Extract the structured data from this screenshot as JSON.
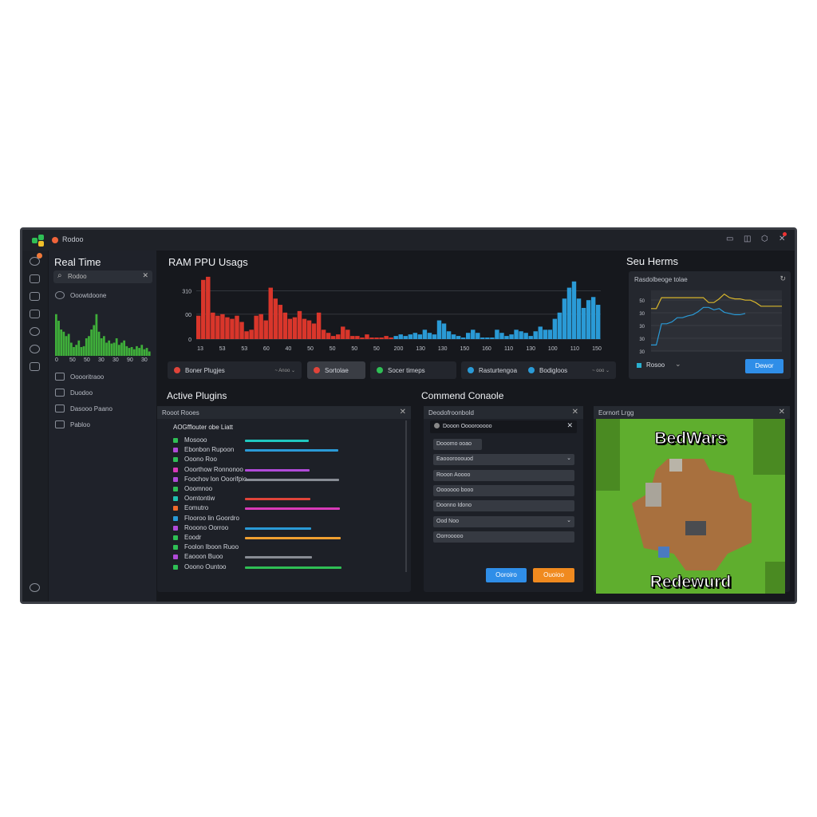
{
  "window": {
    "title": "Rodoo",
    "controls": [
      "minimize-icon",
      "restore-icon",
      "settings-icon",
      "close-icon"
    ]
  },
  "colors": {
    "red": "#d9362b",
    "blue": "#2a9ad6",
    "green": "#3fae3a",
    "yellow": "#d8b62c",
    "accent_blue": "#2f8ee8",
    "accent_orange": "#f08a1f"
  },
  "sidebar": {
    "title": "Real Time",
    "search": "Rodoo",
    "item_top": "Ooowtdoone",
    "items": [
      {
        "label": "Ooooritraoo",
        "icon": "puzzle-icon"
      },
      {
        "label": "Duodoo",
        "icon": "nodes-icon"
      },
      {
        "label": "Dasooo Paano",
        "icon": "list-icon"
      },
      {
        "label": "Pabloo",
        "icon": "blocks-icon"
      }
    ]
  },
  "main": {
    "title": "RAM PPU Usags",
    "legend": [
      {
        "label": "Boner Plugjes",
        "color": "#e0443a",
        "extra": "~ Anoo"
      },
      {
        "label": "Sortolae",
        "color": "#e0443a"
      },
      {
        "label": "Socer timeps",
        "color": "#2fbf55"
      },
      {
        "label": "Rasturtengoa",
        "color": "#2a9ad6"
      },
      {
        "label": "Bodigloos",
        "color": "#2a9ad6",
        "extra": "~ ooo"
      }
    ]
  },
  "right": {
    "title": "Seu Herms",
    "panel_title": "Rasdolbeoge tolae",
    "legend_label": "Rosoo",
    "button": "Dewor"
  },
  "plugins": {
    "title": "Active Plugins",
    "panel_title": "Rooot Rooes",
    "list_title": "AOGfflouter obe Liatt",
    "items": [
      {
        "name": "Mosooo",
        "color": "#2fbf55"
      },
      {
        "name": "Ebonbon Rupoon",
        "color": "#b04ad8"
      },
      {
        "name": "Ooono Roo",
        "color": "#2fbf55"
      },
      {
        "name": "Ooorthow Ronnonoo",
        "color": "#d83ab8"
      },
      {
        "name": "Foochov lon Ooorifpio",
        "color": "#b04ad8"
      },
      {
        "name": "Ooomnoo",
        "color": "#2fbf55"
      },
      {
        "name": "Oomtontiw",
        "color": "#20c0b0"
      },
      {
        "name": "Eomutro",
        "color": "#f06a2a"
      },
      {
        "name": "Flooroo lin Goordro",
        "color": "#2a9ad6"
      },
      {
        "name": "Rooono Oorroo",
        "color": "#b04ad8"
      },
      {
        "name": "Eoodr",
        "color": "#2fbf55"
      },
      {
        "name": "Foolon Iboon Ruoo",
        "color": "#2fbf55"
      },
      {
        "name": "Eaooon Buoo",
        "color": "#b04ad8"
      },
      {
        "name": "Ooono Ountoo",
        "color": "#2fbf55"
      }
    ]
  },
  "console": {
    "title": "Commend Conaole",
    "panel_title": "Deodofroonbold",
    "input": "Dooon Oooorooooo",
    "fields": [
      "Dooomo ooao",
      "Eaooorooouod",
      "Rooon Aoooo",
      "Ooooooo booo",
      "Doonno Idono",
      "Ood Noo",
      "Oorrooooo"
    ],
    "buttons": {
      "primary": "Ooroiro",
      "secondary": "Ouoioo"
    }
  },
  "map": {
    "panel_title": "Eornort Lrgg",
    "top_text": "BedWars",
    "bottom_text": "Redewurd"
  },
  "chart_data": [
    {
      "type": "bar",
      "title": "RAM PPU Usags",
      "yticks": [
        "310",
        "00",
        "0"
      ],
      "xticks": [
        "13",
        "53",
        "53",
        "60",
        "40",
        "50",
        "50",
        "50",
        "50",
        "200",
        "130",
        "130",
        "150",
        "160",
        "110",
        "130",
        "100",
        "110",
        "150"
      ],
      "ylim": [
        0,
        420
      ],
      "series": [
        {
          "color": "#d9362b",
          "values": [
            150,
            380,
            400,
            170,
            150,
            160,
            140,
            130,
            150,
            110,
            50,
            60,
            150,
            160,
            120,
            330,
            260,
            220,
            170,
            130,
            140,
            180,
            130,
            120,
            100,
            170,
            60,
            40,
            20,
            30,
            80,
            60,
            20,
            20,
            10,
            30,
            10,
            10,
            10,
            20,
            10
          ]
        },
        {
          "color": "#2a9ad6",
          "values": [
            20,
            30,
            20,
            30,
            40,
            30,
            60,
            40,
            30,
            120,
            100,
            50,
            30,
            20,
            10,
            40,
            60,
            40,
            10,
            10,
            10,
            60,
            40,
            20,
            30,
            60,
            50,
            40,
            20,
            50,
            80,
            60,
            60,
            130,
            170,
            260,
            330,
            370,
            260,
            200,
            250,
            270,
            220
          ]
        }
      ]
    },
    {
      "type": "bar",
      "xticks": [
        "0",
        "50",
        "50",
        "30",
        "30",
        "90",
        "30"
      ],
      "ylim": [
        0,
        100
      ],
      "values": [
        95,
        80,
        60,
        55,
        45,
        50,
        30,
        20,
        25,
        35,
        20,
        22,
        40,
        45,
        60,
        70,
        95,
        55,
        40,
        45,
        30,
        35,
        28,
        30,
        40,
        25,
        30,
        35,
        22,
        18,
        20,
        15,
        22,
        18,
        25,
        15,
        18,
        10
      ]
    },
    {
      "type": "line",
      "yticks": [
        "50",
        "30",
        "30",
        "30",
        "30"
      ],
      "ylim": [
        0,
        100
      ],
      "series": [
        {
          "color": "#d8b62c",
          "values": [
            70,
            70,
            88,
            88,
            88,
            88,
            88,
            88,
            88,
            88,
            88,
            80,
            80,
            86,
            94,
            88,
            86,
            86,
            84,
            84,
            80,
            74,
            74,
            74,
            74,
            74
          ]
        },
        {
          "color": "#2a9ad6",
          "values": [
            10,
            10,
            45,
            45,
            48,
            55,
            55,
            58,
            60,
            65,
            72,
            72,
            68,
            70,
            64,
            62,
            60,
            60,
            62
          ]
        }
      ]
    }
  ]
}
